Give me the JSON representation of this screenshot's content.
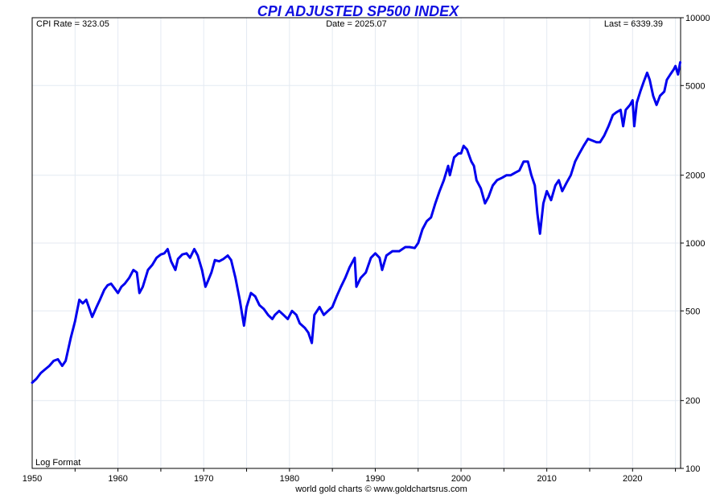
{
  "chart_data": {
    "type": "line",
    "title": "CPI ADJUSTED SP500 INDEX",
    "header": {
      "cpi_rate": "CPI Rate = 323.05",
      "date": "Date = 2025.07",
      "last": "Last = 6339.39"
    },
    "scale_label": "Log Format",
    "credit": "world gold charts © www.goldchartsrus.com",
    "y_scale": "log",
    "ylim": [
      100,
      10000
    ],
    "xlim": [
      1950,
      2025.6
    ],
    "x_ticks": [
      1950,
      1960,
      1970,
      1980,
      1990,
      2000,
      2010,
      2020
    ],
    "x_tick_labels": [
      "1950",
      "1960",
      "1970",
      "1980",
      "1990",
      "2000",
      "2010",
      "2020"
    ],
    "y_ticks": [
      100,
      200,
      500,
      1000,
      2000,
      5000,
      10000
    ],
    "y_tick_labels": [
      "100",
      "200",
      "500",
      "1000",
      "2000",
      "5000",
      "10000"
    ],
    "grid": true,
    "line_color": "#0000ee",
    "series": [
      {
        "name": "",
        "x": [
          1950.0,
          1950.5,
          1951.0,
          1951.5,
          1952.0,
          1952.5,
          1953.0,
          1953.5,
          1953.9,
          1954.5,
          1955.0,
          1955.5,
          1955.9,
          1956.3,
          1956.6,
          1957.0,
          1957.5,
          1957.9,
          1958.4,
          1958.8,
          1959.2,
          1959.6,
          1960.0,
          1960.4,
          1960.8,
          1961.3,
          1961.8,
          1962.2,
          1962.5,
          1962.9,
          1963.5,
          1964.0,
          1964.5,
          1965.0,
          1965.4,
          1965.8,
          1966.2,
          1966.7,
          1967.0,
          1967.5,
          1968.0,
          1968.4,
          1968.9,
          1969.3,
          1969.8,
          1970.2,
          1970.5,
          1970.9,
          1971.3,
          1971.8,
          1972.3,
          1972.8,
          1973.2,
          1973.7,
          1974.2,
          1974.7,
          1975.0,
          1975.5,
          1976.0,
          1976.5,
          1977.0,
          1977.5,
          1978.0,
          1978.3,
          1978.8,
          1979.3,
          1979.8,
          1980.3,
          1980.8,
          1981.2,
          1981.8,
          1982.2,
          1982.6,
          1982.9,
          1983.5,
          1984.0,
          1984.5,
          1985.0,
          1985.5,
          1986.0,
          1986.5,
          1987.0,
          1987.6,
          1987.8,
          1988.3,
          1988.9,
          1989.5,
          1990.0,
          1990.5,
          1990.8,
          1991.3,
          1992.0,
          1992.8,
          1993.5,
          1994.0,
          1994.6,
          1995.0,
          1995.5,
          1996.0,
          1996.5,
          1997.0,
          1997.5,
          1998.0,
          1998.5,
          1998.7,
          1999.2,
          1999.7,
          2000.0,
          2000.3,
          2000.7,
          2001.2,
          2001.5,
          2001.8,
          2002.3,
          2002.8,
          2003.2,
          2003.7,
          2004.2,
          2004.8,
          2005.3,
          2005.8,
          2006.3,
          2006.8,
          2007.3,
          2007.8,
          2008.2,
          2008.6,
          2008.9,
          2009.2,
          2009.6,
          2010.0,
          2010.5,
          2011.0,
          2011.4,
          2011.8,
          2012.3,
          2012.8,
          2013.3,
          2013.8,
          2014.3,
          2014.8,
          2015.3,
          2015.8,
          2016.2,
          2016.7,
          2017.2,
          2017.7,
          2018.1,
          2018.6,
          2018.9,
          2019.2,
          2019.7,
          2020.0,
          2020.2,
          2020.5,
          2020.9,
          2021.3,
          2021.7,
          2022.0,
          2022.4,
          2022.8,
          2023.2,
          2023.7,
          2024.0,
          2024.4,
          2024.8,
          2025.0,
          2025.3,
          2025.55
        ],
        "y": [
          240,
          250,
          265,
          275,
          285,
          300,
          305,
          285,
          300,
          380,
          450,
          560,
          540,
          560,
          520,
          470,
          520,
          560,
          620,
          650,
          660,
          630,
          600,
          640,
          660,
          700,
          760,
          740,
          600,
          640,
          760,
          800,
          860,
          890,
          900,
          940,
          830,
          760,
          850,
          890,
          900,
          860,
          940,
          880,
          760,
          640,
          680,
          740,
          840,
          830,
          850,
          880,
          840,
          700,
          560,
          430,
          520,
          600,
          580,
          530,
          510,
          480,
          460,
          480,
          500,
          480,
          460,
          500,
          480,
          440,
          420,
          400,
          360,
          480,
          520,
          480,
          500,
          520,
          580,
          640,
          700,
          780,
          860,
          640,
          700,
          740,
          860,
          900,
          860,
          760,
          880,
          920,
          920,
          960,
          960,
          950,
          1000,
          1150,
          1250,
          1300,
          1500,
          1700,
          1900,
          2200,
          2000,
          2400,
          2500,
          2500,
          2700,
          2600,
          2300,
          2200,
          1900,
          1750,
          1500,
          1600,
          1800,
          1900,
          1950,
          2000,
          2000,
          2050,
          2100,
          2300,
          2300,
          2000,
          1800,
          1350,
          1100,
          1500,
          1700,
          1550,
          1800,
          1900,
          1700,
          1850,
          2000,
          2300,
          2500,
          2700,
          2900,
          2850,
          2800,
          2800,
          3000,
          3300,
          3700,
          3800,
          3900,
          3300,
          3900,
          4100,
          4300,
          3300,
          4200,
          4700,
          5200,
          5700,
          5300,
          4500,
          4100,
          4500,
          4700,
          5300,
          5600,
          5900,
          6100,
          5600,
          6339
        ]
      }
    ]
  }
}
